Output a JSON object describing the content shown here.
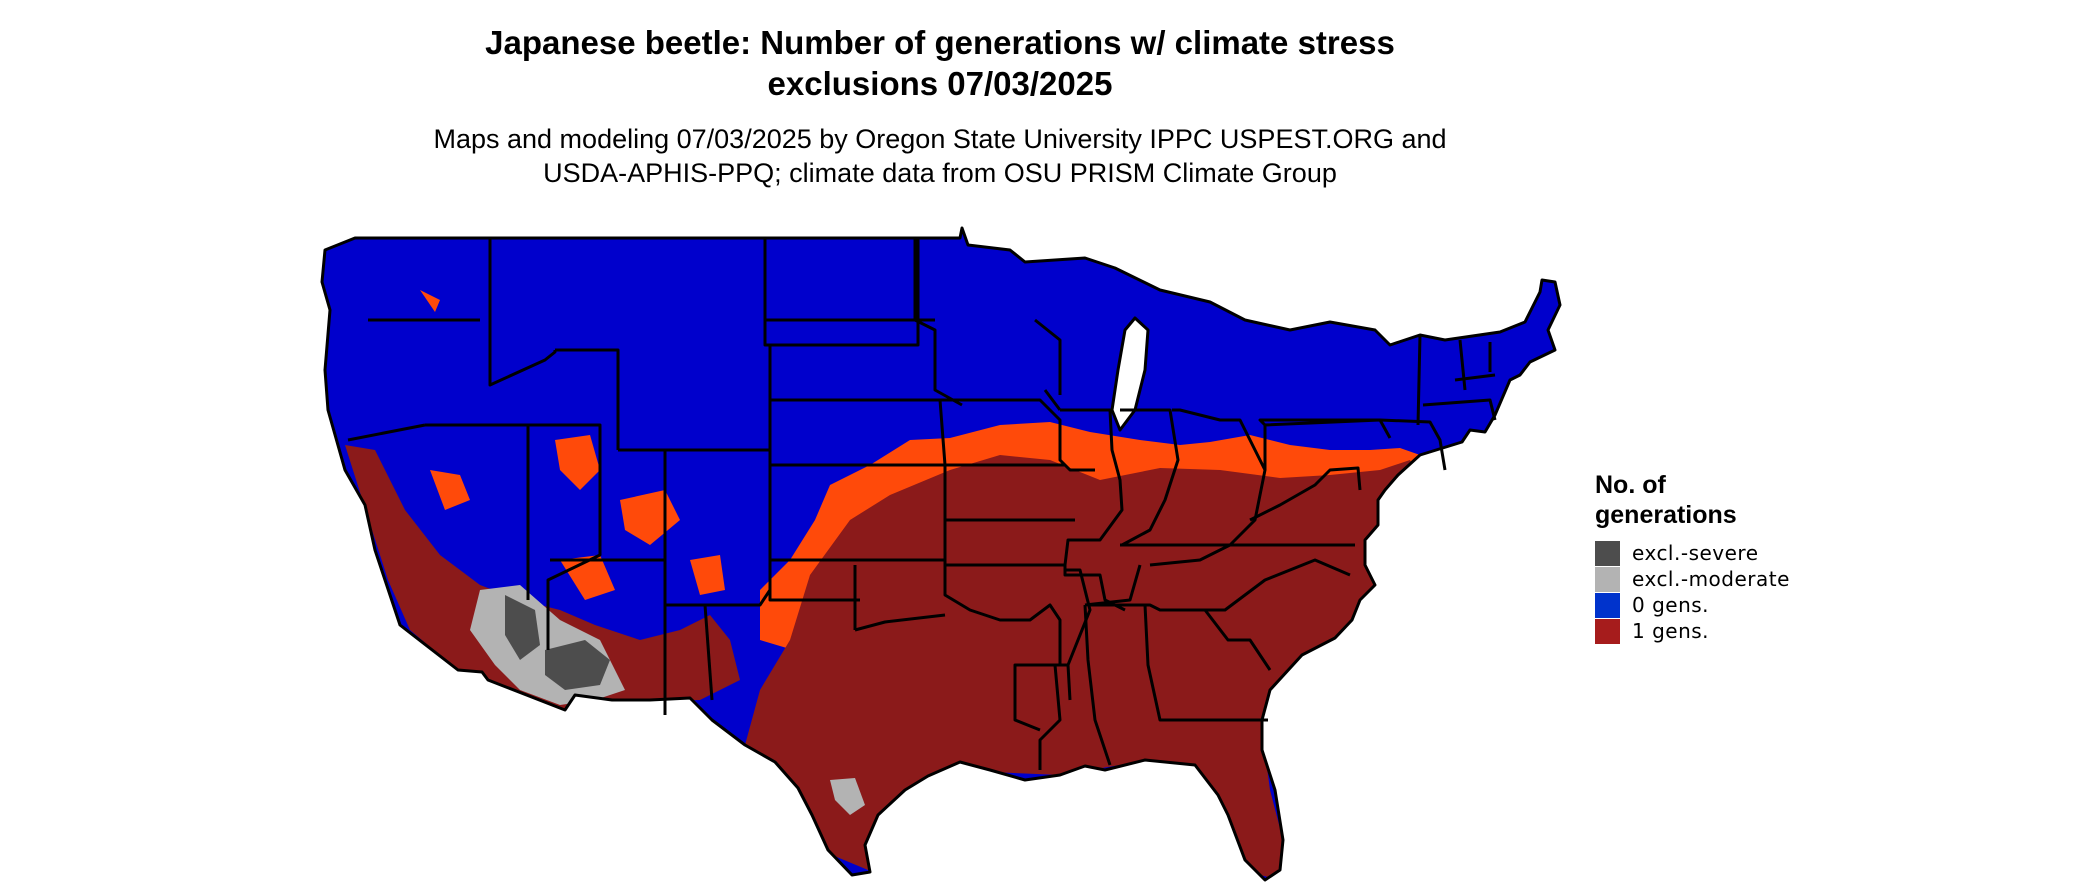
{
  "title": {
    "line1": "Japanese beetle: Number of generations w/ climate stress",
    "line2": "exclusions 07/03/2025"
  },
  "subtitle": {
    "line1": "Maps and modeling 07/03/2025 by Oregon State University IPPC USPEST.ORG and",
    "line2": "USDA-APHIS-PPQ; climate data from OSU PRISM Climate Group"
  },
  "legend": {
    "title_line1": "No. of",
    "title_line2": "generations",
    "items": [
      {
        "label": "excl.-severe",
        "color": "#4d4d4d"
      },
      {
        "label": "excl.-moderate",
        "color": "#b3b3b3"
      },
      {
        "label": "0 gens.",
        "color": "#0033cc"
      },
      {
        "label": "1 gens.",
        "color": "#a61c1c"
      }
    ]
  },
  "map_colors": {
    "zero_gens": "#0000cc",
    "transition": "#ff4a0a",
    "one_gens": "#8b1a1a",
    "excl_moderate": "#b3b3b3",
    "excl_severe": "#4d4d4d",
    "borders": "#000000"
  }
}
